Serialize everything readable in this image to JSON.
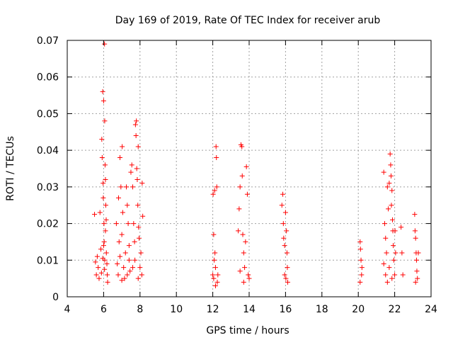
{
  "chart_data": {
    "type": "scatter",
    "title": "Day 169 of 2019, Rate Of TEC Index for receiver arub",
    "xlabel": "GPS time / hours",
    "ylabel": "ROTI / TECUs",
    "xlim": [
      4,
      24
    ],
    "ylim": [
      0,
      0.07
    ],
    "xticks": [
      4,
      6,
      8,
      10,
      12,
      14,
      16,
      18,
      20,
      22,
      24
    ],
    "yticks": [
      0,
      0.01,
      0.02,
      0.03,
      0.04,
      0.05,
      0.06,
      0.07
    ],
    "ytick_labels": [
      "0",
      "0.01",
      "0.02",
      "0.03",
      "0.04",
      "0.05",
      "0.06",
      "0.07"
    ],
    "grid": true,
    "marker": "plus",
    "marker_color": "#ff0000",
    "series": [
      {
        "points": [
          [
            5.5,
            0.0225
          ],
          [
            5.55,
            0.0095
          ],
          [
            5.6,
            0.006
          ],
          [
            5.65,
            0.011
          ],
          [
            5.7,
            0.008
          ],
          [
            5.75,
            0.005
          ],
          [
            5.8,
            0.023
          ],
          [
            5.85,
            0.013
          ],
          [
            5.9,
            0.043
          ],
          [
            5.92,
            0.038
          ],
          [
            5.95,
            0.056
          ],
          [
            5.97,
            0.031
          ],
          [
            5.98,
            0.027
          ],
          [
            6.0,
            0.0535
          ],
          [
            6.02,
            0.02
          ],
          [
            6.03,
            0.015
          ],
          [
            6.05,
            0.069
          ],
          [
            6.06,
            0.048
          ],
          [
            6.08,
            0.036
          ],
          [
            6.1,
            0.032
          ],
          [
            6.12,
            0.025
          ],
          [
            6.15,
            0.012
          ],
          [
            6.18,
            0.009
          ],
          [
            6.2,
            0.006
          ],
          [
            6.22,
            0.004
          ],
          [
            5.95,
            0.0105
          ],
          [
            6.05,
            0.0075
          ],
          [
            6.1,
            0.018
          ],
          [
            6.0,
            0.014
          ],
          [
            5.88,
            0.0065
          ],
          [
            6.14,
            0.021
          ],
          [
            6.06,
            0.01
          ],
          [
            6.7,
            0.02
          ],
          [
            6.75,
            0.009
          ],
          [
            6.8,
            0.006
          ],
          [
            6.82,
            0.027
          ],
          [
            6.85,
            0.015
          ],
          [
            6.9,
            0.038
          ],
          [
            6.95,
            0.03
          ],
          [
            7.0,
            0.017
          ],
          [
            7.02,
            0.041
          ],
          [
            7.05,
            0.023
          ],
          [
            7.1,
            0.008
          ],
          [
            7.15,
            0.005
          ],
          [
            7.2,
            0.012
          ],
          [
            7.25,
            0.03
          ],
          [
            7.3,
            0.025
          ],
          [
            7.35,
            0.02
          ],
          [
            7.4,
            0.014
          ],
          [
            7.45,
            0.007
          ],
          [
            7.5,
            0.034
          ],
          [
            7.55,
            0.036
          ],
          [
            7.6,
            0.03
          ],
          [
            7.65,
            0.02
          ],
          [
            7.7,
            0.015
          ],
          [
            7.72,
            0.01
          ],
          [
            7.75,
            0.047
          ],
          [
            7.78,
            0.044
          ],
          [
            7.8,
            0.048
          ],
          [
            7.82,
            0.035
          ],
          [
            7.85,
            0.032
          ],
          [
            7.88,
            0.025
          ],
          [
            7.9,
            0.041
          ],
          [
            7.92,
            0.019
          ],
          [
            7.95,
            0.016
          ],
          [
            8.0,
            0.008
          ],
          [
            8.05,
            0.012
          ],
          [
            8.1,
            0.006
          ],
          [
            8.12,
            0.031
          ],
          [
            8.15,
            0.022
          ],
          [
            7.3,
            0.006
          ],
          [
            7.6,
            0.008
          ],
          [
            7.0,
            0.0045
          ],
          [
            7.9,
            0.005
          ],
          [
            7.4,
            0.01
          ],
          [
            6.9,
            0.011
          ],
          [
            12.0,
            0.006
          ],
          [
            12.02,
            0.028
          ],
          [
            12.05,
            0.017
          ],
          [
            12.08,
            0.01
          ],
          [
            12.1,
            0.029
          ],
          [
            12.12,
            0.012
          ],
          [
            12.15,
            0.008
          ],
          [
            12.18,
            0.041
          ],
          [
            12.2,
            0.038
          ],
          [
            12.22,
            0.03
          ],
          [
            12.25,
            0.004
          ],
          [
            12.28,
            0.006
          ],
          [
            12.05,
            0.005
          ],
          [
            12.15,
            0.003
          ],
          [
            13.4,
            0.018
          ],
          [
            13.45,
            0.024
          ],
          [
            13.5,
            0.03
          ],
          [
            13.55,
            0.0415
          ],
          [
            13.6,
            0.041
          ],
          [
            13.62,
            0.033
          ],
          [
            13.65,
            0.017
          ],
          [
            13.7,
            0.012
          ],
          [
            13.75,
            0.008
          ],
          [
            13.8,
            0.015
          ],
          [
            13.85,
            0.0355
          ],
          [
            13.9,
            0.028
          ],
          [
            13.95,
            0.006
          ],
          [
            14.0,
            0.005
          ],
          [
            13.5,
            0.007
          ],
          [
            13.7,
            0.004
          ],
          [
            15.8,
            0.025
          ],
          [
            15.85,
            0.028
          ],
          [
            15.88,
            0.02
          ],
          [
            15.9,
            0.016
          ],
          [
            15.95,
            0.014
          ],
          [
            16.0,
            0.023
          ],
          [
            16.05,
            0.018
          ],
          [
            16.08,
            0.012
          ],
          [
            16.1,
            0.008
          ],
          [
            16.12,
            0.004
          ],
          [
            15.95,
            0.006
          ],
          [
            16.02,
            0.005
          ],
          [
            20.1,
            0.015
          ],
          [
            20.12,
            0.013
          ],
          [
            20.15,
            0.01
          ],
          [
            20.18,
            0.006
          ],
          [
            20.2,
            0.008
          ],
          [
            20.1,
            0.004
          ],
          [
            21.4,
            0.034
          ],
          [
            21.45,
            0.02
          ],
          [
            21.5,
            0.016
          ],
          [
            21.55,
            0.012
          ],
          [
            21.6,
            0.03
          ],
          [
            21.65,
            0.024
          ],
          [
            21.7,
            0.031
          ],
          [
            21.75,
            0.039
          ],
          [
            21.78,
            0.036
          ],
          [
            21.8,
            0.033
          ],
          [
            21.82,
            0.025
          ],
          [
            21.85,
            0.029
          ],
          [
            21.88,
            0.021
          ],
          [
            21.9,
            0.018
          ],
          [
            21.92,
            0.014
          ],
          [
            21.95,
            0.01
          ],
          [
            22.0,
            0.006
          ],
          [
            22.02,
            0.018
          ],
          [
            22.05,
            0.012
          ],
          [
            21.5,
            0.006
          ],
          [
            21.7,
            0.008
          ],
          [
            21.85,
            0.005
          ],
          [
            21.4,
            0.009
          ],
          [
            21.6,
            0.004
          ],
          [
            22.35,
            0.019
          ],
          [
            22.4,
            0.012
          ],
          [
            22.45,
            0.006
          ],
          [
            23.1,
            0.0225
          ],
          [
            23.12,
            0.018
          ],
          [
            23.15,
            0.016
          ],
          [
            23.18,
            0.012
          ],
          [
            23.2,
            0.01
          ],
          [
            23.22,
            0.007
          ],
          [
            23.25,
            0.005
          ],
          [
            23.3,
            0.012
          ],
          [
            23.15,
            0.004
          ]
        ]
      }
    ]
  }
}
